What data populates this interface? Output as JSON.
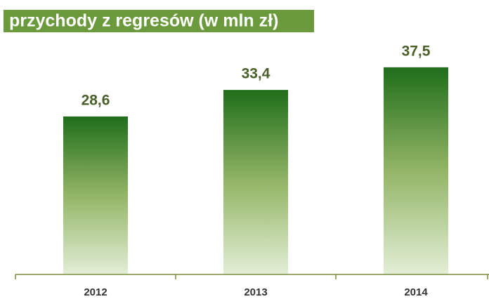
{
  "chart_data": {
    "type": "bar",
    "title": "przychody z regresów (w mln zł)",
    "categories": [
      "2012",
      "2013",
      "2014"
    ],
    "values": [
      28.6,
      33.4,
      37.5
    ],
    "value_labels": [
      "28,6",
      "33,4",
      "37,5"
    ],
    "color": "#1f6e1a"
  }
}
